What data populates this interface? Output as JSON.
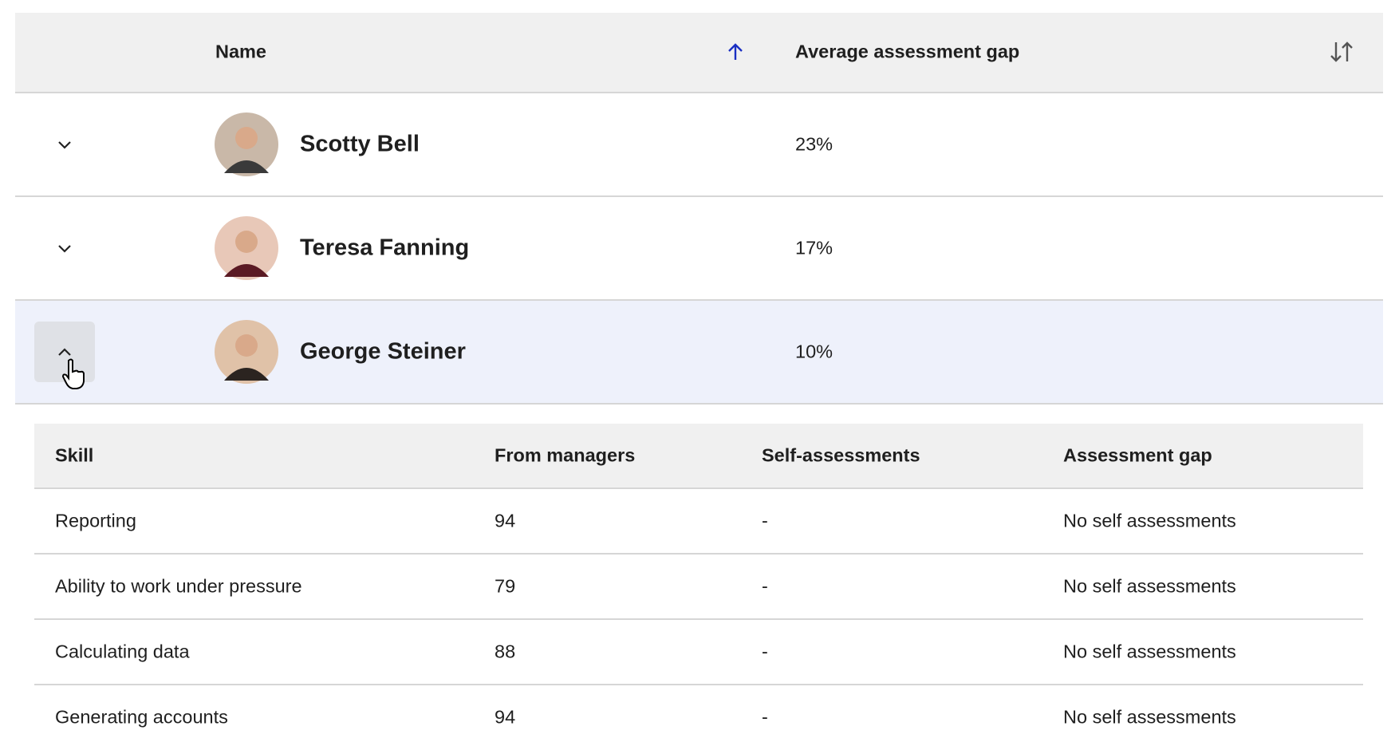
{
  "table": {
    "headers": [
      "Name",
      "Average assessment gap"
    ],
    "rows": [
      [
        "Scotty Bell",
        "23%"
      ],
      [
        "Teresa Fanning",
        "17%"
      ],
      [
        "George Steiner",
        "10%"
      ]
    ]
  },
  "detail": {
    "headers": [
      "Skill",
      "From managers",
      "Self-assessments",
      "Assessment gap"
    ],
    "rows": [
      [
        "Reporting",
        "94",
        "-",
        "No self assessments"
      ],
      [
        "Ability to work under pressure",
        "79",
        "-",
        "No self assessments"
      ],
      [
        "Calculating data",
        "88",
        "-",
        "No self assessments"
      ],
      [
        "Generating accounts",
        "94",
        "-",
        "No self assessments"
      ]
    ]
  }
}
